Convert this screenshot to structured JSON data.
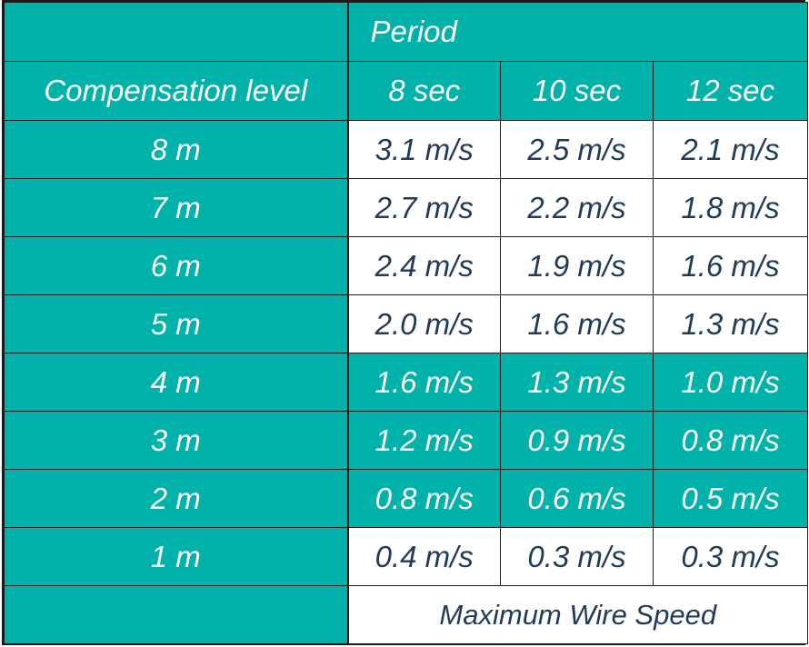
{
  "header": {
    "period_label": "Period",
    "compensation_label": "Compensation level",
    "periods": [
      "8 sec",
      "10 sec",
      "12 sec"
    ]
  },
  "rows": [
    {
      "level": "8 m",
      "speeds": [
        "3.1 m/s",
        "2.5 m/s",
        "2.1 m/s"
      ],
      "highlight": "white"
    },
    {
      "level": "7 m",
      "speeds": [
        "2.7 m/s",
        "2.2 m/s",
        "1.8 m/s"
      ],
      "highlight": "white"
    },
    {
      "level": "6 m",
      "speeds": [
        "2.4 m/s",
        "1.9 m/s",
        "1.6 m/s"
      ],
      "highlight": "white"
    },
    {
      "level": "5 m",
      "speeds": [
        "2.0 m/s",
        "1.6 m/s",
        "1.3 m/s"
      ],
      "highlight": "white"
    },
    {
      "level": "4 m",
      "speeds": [
        "1.6 m/s",
        "1.3 m/s",
        "1.0 m/s"
      ],
      "highlight": "teal"
    },
    {
      "level": "3 m",
      "speeds": [
        "1.2 m/s",
        "0.9 m/s",
        "0.8 m/s"
      ],
      "highlight": "teal"
    },
    {
      "level": "2 m",
      "speeds": [
        "0.8 m/s",
        "0.6 m/s",
        "0.5 m/s"
      ],
      "highlight": "teal"
    },
    {
      "level": "1 m",
      "speeds": [
        "0.4 m/s",
        "0.3 m/s",
        "0.3 m/s"
      ],
      "highlight": "white"
    }
  ],
  "footer": {
    "caption": "Maximum Wire Speed"
  },
  "colors": {
    "teal": "#00b2a9",
    "white_cell_text": "#1f3a5a",
    "teal_cell_text": "#ffffff",
    "border": "#1a1a1a"
  }
}
